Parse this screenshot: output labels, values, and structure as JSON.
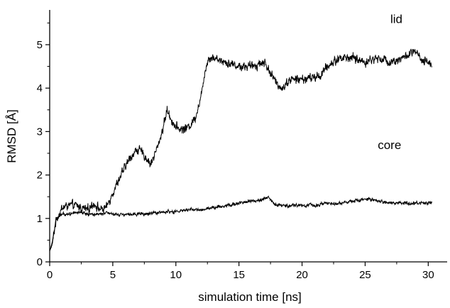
{
  "chart_data": {
    "type": "line",
    "title": "",
    "xlabel": "simulation time [ns]",
    "ylabel": "RMSD [Å]",
    "xlim": [
      0,
      31.5
    ],
    "ylim": [
      0,
      5.8
    ],
    "xticks": [
      0,
      5,
      10,
      15,
      20,
      25,
      30
    ],
    "yticks": [
      0,
      1,
      2,
      3,
      4,
      5
    ],
    "grid": false,
    "legend": "none",
    "series": [
      {
        "name": "lid",
        "color": "#000000",
        "x": [
          0,
          0.2,
          0.5,
          1,
          1.5,
          2,
          2.5,
          3,
          3.5,
          4,
          4.5,
          5,
          5.5,
          6,
          6.5,
          7,
          7.5,
          8,
          8.5,
          9,
          9.3,
          9.6,
          10,
          10.5,
          11,
          11.5,
          12,
          12.3,
          12.6,
          13,
          14,
          15,
          16,
          17,
          18,
          18.5,
          19,
          20,
          21,
          21.5,
          22,
          22.5,
          23,
          24,
          25,
          26,
          27,
          28,
          29,
          29.5,
          30,
          30.3
        ],
        "y": [
          0.25,
          0.4,
          0.95,
          1.25,
          1.3,
          1.3,
          1.25,
          1.2,
          1.35,
          1.2,
          1.25,
          1.6,
          1.9,
          2.2,
          2.45,
          2.6,
          2.45,
          2.25,
          2.6,
          3.1,
          3.5,
          3.3,
          3.1,
          3.05,
          3.1,
          3.3,
          3.8,
          4.4,
          4.7,
          4.7,
          4.6,
          4.5,
          4.5,
          4.6,
          4.1,
          4.0,
          4.2,
          4.2,
          4.25,
          4.3,
          4.5,
          4.6,
          4.7,
          4.7,
          4.6,
          4.7,
          4.6,
          4.7,
          4.85,
          4.6,
          4.6,
          4.55
        ],
        "label": "lid",
        "label_at": [
          27,
          5.5
        ]
      },
      {
        "name": "core",
        "color": "#000000",
        "x": [
          0,
          0.2,
          0.5,
          1,
          1.5,
          2,
          2.5,
          3,
          3.5,
          4,
          4.5,
          5,
          6,
          7,
          8,
          9,
          10,
          11,
          12,
          13,
          14,
          15,
          16,
          17,
          17.3,
          18,
          19,
          20,
          21,
          22,
          23,
          24,
          25,
          26,
          27,
          28,
          29,
          30,
          30.3
        ],
        "y": [
          0.25,
          0.45,
          1.0,
          1.1,
          1.1,
          1.15,
          1.15,
          1.1,
          1.1,
          1.1,
          1.15,
          1.1,
          1.1,
          1.1,
          1.1,
          1.15,
          1.15,
          1.2,
          1.2,
          1.25,
          1.3,
          1.35,
          1.4,
          1.45,
          1.5,
          1.3,
          1.3,
          1.3,
          1.3,
          1.35,
          1.35,
          1.4,
          1.45,
          1.4,
          1.35,
          1.35,
          1.35,
          1.35,
          1.35
        ],
        "label": "core",
        "label_at": [
          26,
          2.6
        ]
      }
    ]
  }
}
